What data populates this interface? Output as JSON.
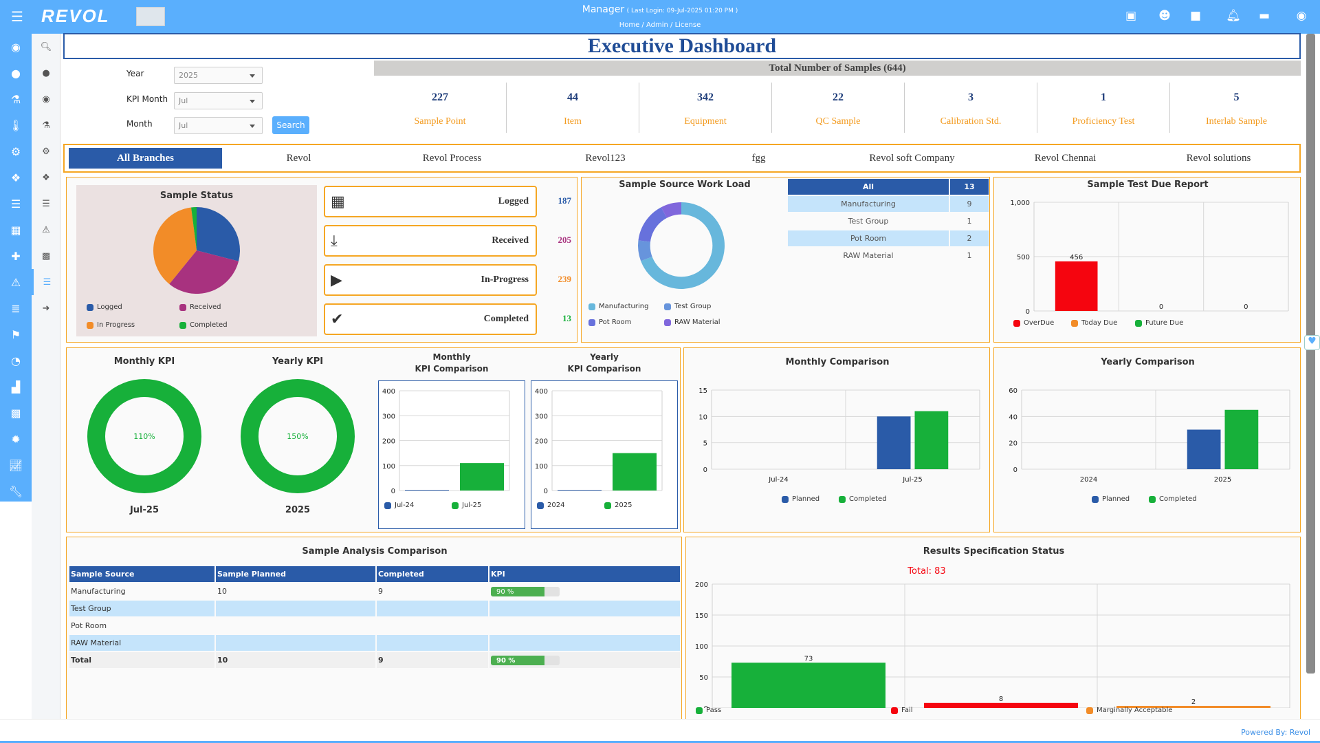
{
  "header": {
    "brand": "REVOL",
    "user": "Manager",
    "last_login": "( Last Login: 09-Jul-2025 01:20 PM )",
    "breadcrumb": [
      "Home",
      "Admin",
      "License"
    ]
  },
  "title": "Executive Dashboard",
  "filters": {
    "year_label": "Year",
    "year_value": "2025",
    "kpi_month_label": "KPI Month",
    "kpi_month_value": "Jul",
    "month_label": "Month",
    "month_value": "Jul",
    "search_label": "Search"
  },
  "totals": {
    "label": "Total Number of Samples (644)",
    "items": [
      {
        "n": "227",
        "l": "Sample Point"
      },
      {
        "n": "44",
        "l": "Item"
      },
      {
        "n": "342",
        "l": "Equipment"
      },
      {
        "n": "22",
        "l": "QC Sample"
      },
      {
        "n": "3",
        "l": "Calibration Std."
      },
      {
        "n": "1",
        "l": "Proficiency Test"
      },
      {
        "n": "5",
        "l": "Interlab Sample"
      }
    ]
  },
  "branches": [
    "All Branches",
    "Revol",
    "Revol Process",
    "Revol123",
    "fgg",
    "Revol soft Company",
    "Revol Chennai",
    "Revol solutions"
  ],
  "sample_status": {
    "title": "Sample Status",
    "cards": [
      {
        "label": "Logged",
        "value": "187",
        "color": "#2a5ba8"
      },
      {
        "label": "Received",
        "value": "205",
        "color": "#a8327f"
      },
      {
        "label": "In-Progress",
        "value": "239",
        "color": "#f28c28"
      },
      {
        "label": "Completed",
        "value": "13",
        "color": "#17b03a"
      }
    ],
    "legend": [
      "Logged",
      "Received",
      "In Progress",
      "Completed"
    ]
  },
  "workload": {
    "title": "Sample Source Work Load",
    "header": [
      "All",
      "13"
    ],
    "rows": [
      [
        "Manufacturing",
        "9"
      ],
      [
        "Test Group",
        "1"
      ],
      [
        "Pot Room",
        "2"
      ],
      [
        "RAW Material",
        "1"
      ]
    ]
  },
  "footer": "Powered By: Revol",
  "chart_data": [
    {
      "id": "status_pie",
      "type": "pie",
      "title": "Sample Status",
      "labels": [
        "Logged",
        "Received",
        "In Progress",
        "Completed"
      ],
      "values": [
        187,
        205,
        239,
        13
      ],
      "colors": [
        "#2a5ba8",
        "#a8327f",
        "#f28c28",
        "#17b03a"
      ]
    },
    {
      "id": "workload_donut",
      "type": "pie",
      "title": "Sample Source Work Load",
      "labels": [
        "Manufacturing",
        "Test Group",
        "Pot Room",
        "RAW Material"
      ],
      "values": [
        9,
        1,
        2,
        1
      ],
      "colors": [
        "#67b7dc",
        "#6794dc",
        "#6771dc",
        "#8067dc"
      ]
    },
    {
      "id": "due",
      "type": "bar",
      "title": "Sample Test Due Report",
      "categories": [
        "OverDue",
        "Today Due",
        "Future Due"
      ],
      "series": [
        {
          "name": "Due",
          "values": [
            456,
            0,
            0
          ]
        }
      ],
      "colors": [
        "#f5050f",
        "#f28c28",
        "#17b03a"
      ],
      "ylim": [
        0,
        1000
      ],
      "ticks": [
        "0",
        "500",
        "1,000"
      ],
      "tickvals": [
        0,
        500,
        1000
      ]
    },
    {
      "id": "monthly_kpi",
      "type": "pie",
      "title": "Monthly KPI",
      "center_label": "110%",
      "xlabel": "Jul-25",
      "value": 110
    },
    {
      "id": "yearly_kpi",
      "type": "pie",
      "title": "Yearly KPI",
      "center_label": "150%",
      "xlabel": "2025",
      "value": 150
    },
    {
      "id": "monthly_kpi_cmp",
      "type": "bar",
      "title_lines": [
        "Monthly",
        "KPI Comparison"
      ],
      "categories": [
        "Jul-24",
        "Jul-25"
      ],
      "series": [
        {
          "name": "KPI",
          "values": [
            0,
            110
          ]
        }
      ],
      "colors": [
        "#2a5ba8",
        "#17b03a"
      ],
      "ylim": [
        0,
        400
      ],
      "ticks": [
        "0",
        "100",
        "200",
        "300",
        "400"
      ],
      "tickvals": [
        0,
        100,
        200,
        300,
        400
      ]
    },
    {
      "id": "yearly_kpi_cmp",
      "type": "bar",
      "title_lines": [
        "Yearly",
        "KPI Comparison"
      ],
      "categories": [
        "2024",
        "2025"
      ],
      "series": [
        {
          "name": "KPI",
          "values": [
            0,
            150
          ]
        }
      ],
      "colors": [
        "#2a5ba8",
        "#17b03a"
      ],
      "ylim": [
        0,
        400
      ],
      "ticks": [
        "0",
        "100",
        "200",
        "300",
        "400"
      ],
      "tickvals": [
        0,
        100,
        200,
        300,
        400
      ]
    },
    {
      "id": "monthly_cmp",
      "type": "bar",
      "title": "Monthly Comparison",
      "categories": [
        "Jul-24",
        "Jul-25"
      ],
      "series": [
        {
          "name": "Planned",
          "color": "#2a5ba8",
          "values": [
            0,
            10
          ]
        },
        {
          "name": "Completed",
          "color": "#17b03a",
          "values": [
            0,
            11
          ]
        }
      ],
      "ylim": [
        0,
        15
      ],
      "ticks": [
        "0",
        "5",
        "10",
        "15"
      ],
      "tickvals": [
        0,
        5,
        10,
        15
      ]
    },
    {
      "id": "yearly_cmp",
      "type": "bar",
      "title": "Yearly Comparison",
      "categories": [
        "2024",
        "2025"
      ],
      "series": [
        {
          "name": "Planned",
          "color": "#2a5ba8",
          "values": [
            0,
            30
          ]
        },
        {
          "name": "Completed",
          "color": "#17b03a",
          "values": [
            0,
            45
          ]
        }
      ],
      "ylim": [
        0,
        60
      ],
      "ticks": [
        "0",
        "20",
        "40",
        "60"
      ],
      "tickvals": [
        0,
        20,
        40,
        60
      ]
    },
    {
      "id": "results",
      "type": "bar",
      "title": "Results Specification Status",
      "annotation": "Total: 83",
      "categories": [
        "Pass",
        "Fail",
        "Marginally Acceptable"
      ],
      "series": [
        {
          "name": "Results",
          "values": [
            73,
            8,
            2
          ]
        }
      ],
      "colors": [
        "#17b03a",
        "#f5050f",
        "#f28c28"
      ],
      "ylim": [
        0,
        200
      ],
      "ticks": [
        "0",
        "50",
        "100",
        "150",
        "200"
      ],
      "tickvals": [
        0,
        50,
        100,
        150,
        200
      ]
    }
  ],
  "analysis": {
    "title": "Sample Analysis Comparison",
    "columns": [
      "Sample Source",
      "Sample Planned",
      "Completed",
      "KPI"
    ],
    "rows": [
      {
        "src": "Manufacturing",
        "planned": "10",
        "completed": "9",
        "kpi": "90 %",
        "kpi_pct": 90
      },
      {
        "src": "Test Group",
        "planned": "",
        "completed": "",
        "kpi": ""
      },
      {
        "src": "Pot Room",
        "planned": "",
        "completed": "",
        "kpi": ""
      },
      {
        "src": "RAW Material",
        "planned": "",
        "completed": "",
        "kpi": ""
      }
    ],
    "total": {
      "src": "Total",
      "planned": "10",
      "completed": "9",
      "kpi": "90 %",
      "kpi_pct": 90
    }
  }
}
